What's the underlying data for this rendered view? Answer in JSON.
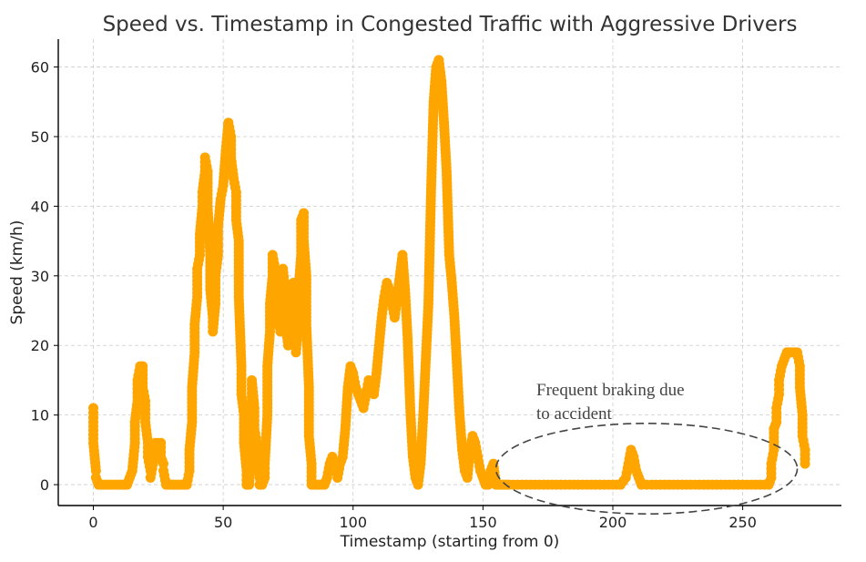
{
  "chart_data": {
    "type": "scatter",
    "title": "Speed vs. Timestamp in Congested Traffic with Aggressive Drivers",
    "xlabel": "Timestamp (starting from 0)",
    "ylabel": "Speed (km/h)",
    "xlim": [
      -13.5,
      288
    ],
    "ylim": [
      -3,
      64
    ],
    "x_ticks": [
      0,
      50,
      100,
      150,
      200,
      250
    ],
    "y_ticks": [
      0,
      10,
      20,
      30,
      40,
      50,
      60
    ],
    "grid": true,
    "point_color": "#FFA500",
    "annotation_color": "#444444",
    "annotation": {
      "text_lines": [
        "Frequent braking due",
        "to accident"
      ],
      "ellipse_center": [
        213,
        2.3
      ],
      "ellipse_radius_x": 58,
      "ellipse_radius_y": 6.5
    },
    "series": [
      {
        "values": [
          [
            0,
            11
          ],
          [
            0,
            9
          ],
          [
            0,
            6
          ],
          [
            1,
            2
          ],
          [
            1,
            1
          ],
          [
            2,
            0
          ],
          [
            3,
            0
          ],
          [
            4,
            0
          ],
          [
            5,
            0
          ],
          [
            6,
            0
          ],
          [
            7,
            0
          ],
          [
            8,
            0
          ],
          [
            9,
            0
          ],
          [
            10,
            0
          ],
          [
            11,
            0
          ],
          [
            12,
            0
          ],
          [
            13,
            0
          ],
          [
            14,
            1
          ],
          [
            15,
            2
          ],
          [
            16,
            6
          ],
          [
            16,
            9
          ],
          [
            17,
            12
          ],
          [
            17,
            15
          ],
          [
            18,
            17
          ],
          [
            19,
            17
          ],
          [
            19,
            14
          ],
          [
            20,
            12
          ],
          [
            20,
            9
          ],
          [
            21,
            6
          ],
          [
            21,
            4
          ],
          [
            22,
            2
          ],
          [
            22,
            1
          ],
          [
            23,
            3
          ],
          [
            23,
            5
          ],
          [
            24,
            6
          ],
          [
            25,
            6
          ],
          [
            25,
            5
          ],
          [
            26,
            6
          ],
          [
            26,
            4
          ],
          [
            27,
            3
          ],
          [
            27,
            2
          ],
          [
            28,
            0
          ],
          [
            29,
            0
          ],
          [
            30,
            0
          ],
          [
            31,
            0
          ],
          [
            32,
            0
          ],
          [
            33,
            0
          ],
          [
            34,
            0
          ],
          [
            35,
            0
          ],
          [
            36,
            0
          ],
          [
            37,
            2
          ],
          [
            37,
            5
          ],
          [
            38,
            9
          ],
          [
            38,
            14
          ],
          [
            39,
            19
          ],
          [
            39,
            23
          ],
          [
            40,
            27
          ],
          [
            40,
            31
          ],
          [
            41,
            33
          ],
          [
            41,
            36
          ],
          [
            42,
            40
          ],
          [
            42,
            42
          ],
          [
            43,
            45
          ],
          [
            43,
            47
          ],
          [
            44,
            45
          ],
          [
            44,
            40
          ],
          [
            45,
            33
          ],
          [
            45,
            28
          ],
          [
            46,
            24
          ],
          [
            46,
            22
          ],
          [
            47,
            26
          ],
          [
            47,
            30
          ],
          [
            48,
            33
          ],
          [
            48,
            37
          ],
          [
            49,
            41
          ],
          [
            50,
            43
          ],
          [
            51,
            48
          ],
          [
            52,
            52
          ],
          [
            53,
            50
          ],
          [
            53,
            47
          ],
          [
            54,
            44
          ],
          [
            55,
            42
          ],
          [
            55,
            38
          ],
          [
            56,
            35
          ],
          [
            56,
            27
          ],
          [
            57,
            17
          ],
          [
            57,
            13
          ],
          [
            58,
            10
          ],
          [
            58,
            6
          ],
          [
            59,
            2
          ],
          [
            59,
            0
          ],
          [
            60,
            0
          ],
          [
            61,
            12
          ],
          [
            61,
            15
          ],
          [
            62,
            11
          ],
          [
            62,
            8
          ],
          [
            63,
            6
          ],
          [
            63,
            3
          ],
          [
            64,
            1
          ],
          [
            64,
            0
          ],
          [
            65,
            0
          ],
          [
            66,
            1
          ],
          [
            66,
            3
          ],
          [
            67,
            10
          ],
          [
            67,
            17
          ],
          [
            68,
            22
          ],
          [
            68,
            26
          ],
          [
            69,
            30
          ],
          [
            69,
            33
          ],
          [
            70,
            31
          ],
          [
            70,
            27
          ],
          [
            71,
            24
          ],
          [
            72,
            22
          ],
          [
            72,
            25
          ],
          [
            73,
            28
          ],
          [
            73,
            31
          ],
          [
            74,
            27
          ],
          [
            74,
            23
          ],
          [
            75,
            20
          ],
          [
            75,
            22
          ],
          [
            76,
            25
          ],
          [
            76,
            27
          ],
          [
            77,
            29
          ],
          [
            77,
            24
          ],
          [
            78,
            21
          ],
          [
            78,
            19
          ],
          [
            79,
            23
          ],
          [
            79,
            28
          ],
          [
            80,
            33
          ],
          [
            80,
            38
          ],
          [
            81,
            39
          ],
          [
            81,
            35
          ],
          [
            82,
            30
          ],
          [
            82,
            23
          ],
          [
            83,
            14
          ],
          [
            83,
            7
          ],
          [
            84,
            3
          ],
          [
            84,
            0
          ],
          [
            85,
            0
          ],
          [
            86,
            0
          ],
          [
            87,
            0
          ],
          [
            88,
            0
          ],
          [
            89,
            0
          ],
          [
            90,
            1
          ],
          [
            91,
            3
          ],
          [
            92,
            4
          ],
          [
            93,
            3
          ],
          [
            94,
            1
          ],
          [
            95,
            3
          ],
          [
            96,
            4
          ],
          [
            97,
            8
          ],
          [
            98,
            14
          ],
          [
            99,
            17
          ],
          [
            100,
            16
          ],
          [
            101,
            14
          ],
          [
            102,
            13
          ],
          [
            103,
            12
          ],
          [
            104,
            11
          ],
          [
            105,
            13
          ],
          [
            106,
            15
          ],
          [
            107,
            14
          ],
          [
            108,
            13
          ],
          [
            109,
            16
          ],
          [
            110,
            20
          ],
          [
            111,
            24
          ],
          [
            112,
            27
          ],
          [
            113,
            29
          ],
          [
            114,
            28
          ],
          [
            115,
            26
          ],
          [
            116,
            24
          ],
          [
            117,
            27
          ],
          [
            118,
            30
          ],
          [
            119,
            33
          ],
          [
            120,
            28
          ],
          [
            121,
            21
          ],
          [
            122,
            11
          ],
          [
            123,
            4
          ],
          [
            124,
            1
          ],
          [
            125,
            0
          ],
          [
            126,
            3
          ],
          [
            127,
            10
          ],
          [
            128,
            18
          ],
          [
            129,
            26
          ],
          [
            130,
            42
          ],
          [
            131,
            55
          ],
          [
            132,
            60
          ],
          [
            133,
            61
          ],
          [
            134,
            58
          ],
          [
            135,
            52
          ],
          [
            136,
            45
          ],
          [
            137,
            33
          ],
          [
            138,
            29
          ],
          [
            139,
            24
          ],
          [
            140,
            17
          ],
          [
            141,
            10
          ],
          [
            142,
            5
          ],
          [
            143,
            2
          ],
          [
            144,
            1
          ],
          [
            145,
            5
          ],
          [
            146,
            7
          ],
          [
            147,
            6
          ],
          [
            148,
            4
          ],
          [
            149,
            2
          ],
          [
            150,
            1
          ],
          [
            151,
            0
          ],
          [
            152,
            0
          ],
          [
            153,
            2
          ],
          [
            154,
            3
          ],
          [
            155,
            0
          ],
          [
            156,
            0
          ],
          [
            157,
            0
          ],
          [
            158,
            0
          ],
          [
            159,
            0
          ],
          [
            160,
            0
          ],
          [
            165,
            0
          ],
          [
            170,
            0
          ],
          [
            175,
            0
          ],
          [
            180,
            0
          ],
          [
            185,
            0
          ],
          [
            190,
            0
          ],
          [
            195,
            0
          ],
          [
            200,
            0
          ],
          [
            203,
            0
          ],
          [
            205,
            1
          ],
          [
            206,
            3
          ],
          [
            207,
            5
          ],
          [
            208,
            4
          ],
          [
            209,
            2
          ],
          [
            210,
            1
          ],
          [
            211,
            0
          ],
          [
            215,
            0
          ],
          [
            220,
            0
          ],
          [
            225,
            0
          ],
          [
            230,
            0
          ],
          [
            235,
            0
          ],
          [
            240,
            0
          ],
          [
            245,
            0
          ],
          [
            250,
            0
          ],
          [
            255,
            0
          ],
          [
            260,
            0
          ],
          [
            261,
            1
          ],
          [
            261,
            3
          ],
          [
            262,
            5
          ],
          [
            262,
            8
          ],
          [
            263,
            9
          ],
          [
            263,
            11
          ],
          [
            264,
            13
          ],
          [
            264,
            15
          ],
          [
            265,
            17
          ],
          [
            266,
            18
          ],
          [
            267,
            19
          ],
          [
            268,
            19
          ],
          [
            269,
            19
          ],
          [
            270,
            19
          ],
          [
            271,
            19
          ],
          [
            272,
            17
          ],
          [
            272,
            14
          ],
          [
            273,
            10
          ],
          [
            273,
            7
          ],
          [
            274,
            5
          ],
          [
            274,
            3
          ]
        ]
      }
    ]
  }
}
